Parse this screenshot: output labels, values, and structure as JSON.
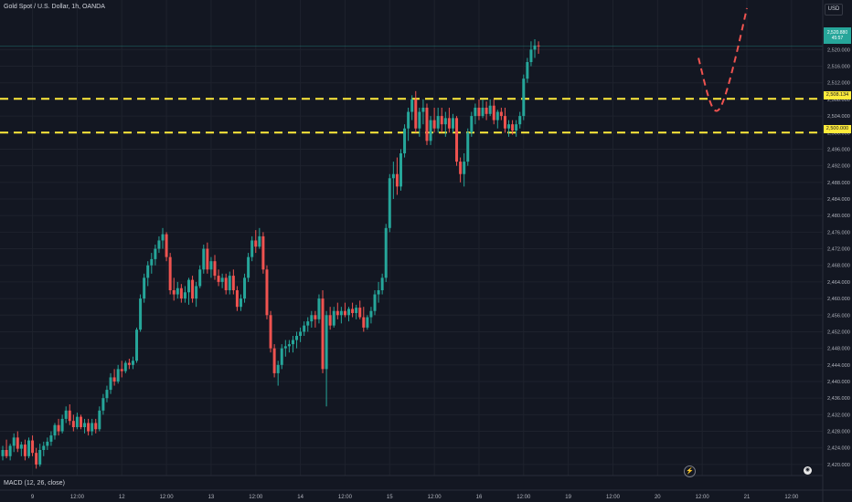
{
  "header": {
    "symbol_line": "Gold Spot / U.S. Dollar, 1h, OANDA"
  },
  "currency_button": "USD",
  "indicator_label": "MACD (12, 26, close)",
  "price_labels": {
    "resistance": "2,508.134",
    "support": "2,500.000",
    "last_price": "2,520.880",
    "last_countdown": "45:57"
  },
  "colors": {
    "background": "#131722",
    "bull": "#26a69a",
    "bear": "#ef5350",
    "level_line": "#ffeb3b",
    "projection": "#ef5350",
    "grid": "#1e222d",
    "axis_text": "#b2b5be"
  },
  "icons": [
    "lightning-icon",
    "tradingview-logo-icon"
  ],
  "chart_data": {
    "type": "candlestick",
    "title": "Gold Spot / U.S. Dollar, 1h, OANDA",
    "ylim": [
      2418,
      2528
    ],
    "y_ticks": [
      "2,520.000",
      "2,516.000",
      "2,512.000",
      "2,508.000",
      "2,504.000",
      "2,500.000",
      "2,496.000",
      "2,492.000",
      "2,488.000",
      "2,484.000",
      "2,480.000",
      "2,476.000",
      "2,472.000",
      "2,468.000",
      "2,464.000",
      "2,460.000",
      "2,456.000",
      "2,452.000",
      "2,448.000",
      "2,444.000",
      "2,440.000",
      "2,436.000",
      "2,432.000",
      "2,428.000",
      "2,424.000",
      "2,420.000"
    ],
    "y_tick_values": [
      2520,
      2516,
      2512,
      2508,
      2504,
      2500,
      2496,
      2492,
      2488,
      2484,
      2480,
      2476,
      2472,
      2468,
      2464,
      2460,
      2456,
      2452,
      2448,
      2444,
      2440,
      2436,
      2432,
      2428,
      2424,
      2420
    ],
    "x_ticks": [
      {
        "label": "9",
        "bar": 8
      },
      {
        "label": "12:00",
        "bar": 20
      },
      {
        "label": "12",
        "bar": 32
      },
      {
        "label": "12:00",
        "bar": 44
      },
      {
        "label": "13",
        "bar": 56
      },
      {
        "label": "12:00",
        "bar": 68
      },
      {
        "label": "14",
        "bar": 80
      },
      {
        "label": "12:00",
        "bar": 92
      },
      {
        "label": "15",
        "bar": 104
      },
      {
        "label": "12:00",
        "bar": 116
      },
      {
        "label": "16",
        "bar": 128
      },
      {
        "label": "12:00",
        "bar": 140
      },
      {
        "label": "19",
        "bar": 152
      },
      {
        "label": "12:00",
        "bar": 164
      },
      {
        "label": "20",
        "bar": 176
      },
      {
        "label": "12:00",
        "bar": 188
      },
      {
        "label": "21",
        "bar": 200
      },
      {
        "label": "12:00",
        "bar": 212
      }
    ],
    "horizontal_levels": [
      2508.134,
      2500.0
    ],
    "last_price": 2520.88,
    "projection": {
      "style": "dashed",
      "points": [
        [
          187,
          2518
        ],
        [
          190,
          2507
        ],
        [
          192,
          2504.5
        ],
        [
          194,
          2508
        ],
        [
          197,
          2518
        ],
        [
          200,
          2530
        ]
      ]
    },
    "ohlc": [
      [
        2422.0,
        2424.5,
        2421.0,
        2423.5
      ],
      [
        2423.5,
        2426.0,
        2421.5,
        2422.0
      ],
      [
        2422.0,
        2425.0,
        2421.0,
        2424.5
      ],
      [
        2424.5,
        2427.5,
        2423.0,
        2426.5
      ],
      [
        2426.5,
        2428.0,
        2423.0,
        2423.8
      ],
      [
        2423.8,
        2425.5,
        2422.0,
        2424.8
      ],
      [
        2424.8,
        2426.0,
        2421.0,
        2422.0
      ],
      [
        2422.0,
        2426.5,
        2421.5,
        2425.8
      ],
      [
        2425.8,
        2427.0,
        2422.0,
        2422.8
      ],
      [
        2422.8,
        2424.0,
        2419.0,
        2420.0
      ],
      [
        2420.0,
        2425.0,
        2419.5,
        2423.5
      ],
      [
        2423.5,
        2425.5,
        2422.0,
        2424.5
      ],
      [
        2424.5,
        2426.5,
        2423.5,
        2425.5
      ],
      [
        2425.5,
        2428.0,
        2424.5,
        2427.0
      ],
      [
        2427.0,
        2430.0,
        2426.0,
        2429.5
      ],
      [
        2429.5,
        2431.0,
        2427.0,
        2428.0
      ],
      [
        2428.0,
        2432.0,
        2427.5,
        2431.0
      ],
      [
        2431.0,
        2434.0,
        2430.0,
        2433.0
      ],
      [
        2433.0,
        2434.5,
        2429.5,
        2430.5
      ],
      [
        2430.5,
        2432.0,
        2428.0,
        2429.0
      ],
      [
        2429.0,
        2432.5,
        2428.5,
        2431.5
      ],
      [
        2431.5,
        2432.0,
        2428.5,
        2429.0
      ],
      [
        2429.0,
        2431.0,
        2427.5,
        2430.0
      ],
      [
        2430.0,
        2431.0,
        2427.0,
        2428.0
      ],
      [
        2428.0,
        2431.0,
        2427.0,
        2430.0
      ],
      [
        2430.0,
        2431.0,
        2427.5,
        2428.5
      ],
      [
        2428.5,
        2434.0,
        2428.0,
        2433.0
      ],
      [
        2433.0,
        2437.0,
        2432.0,
        2436.0
      ],
      [
        2436.0,
        2439.0,
        2435.0,
        2438.0
      ],
      [
        2438.0,
        2442.0,
        2437.0,
        2441.0
      ],
      [
        2441.0,
        2443.0,
        2439.0,
        2440.0
      ],
      [
        2440.0,
        2444.0,
        2439.5,
        2443.0
      ],
      [
        2443.0,
        2445.0,
        2441.0,
        2442.5
      ],
      [
        2442.5,
        2445.0,
        2442.0,
        2444.5
      ],
      [
        2444.5,
        2445.5,
        2443.0,
        2444.0
      ],
      [
        2444.0,
        2446.0,
        2443.0,
        2445.0
      ],
      [
        2445.0,
        2453.0,
        2444.5,
        2452.5
      ],
      [
        2452.5,
        2461.0,
        2452.0,
        2460.0
      ],
      [
        2460.0,
        2466.0,
        2459.0,
        2465.0
      ],
      [
        2465.0,
        2469.0,
        2463.0,
        2468.0
      ],
      [
        2468.0,
        2471.0,
        2466.0,
        2469.5
      ],
      [
        2469.5,
        2473.0,
        2468.0,
        2472.0
      ],
      [
        2472.0,
        2475.0,
        2471.0,
        2474.0
      ],
      [
        2474.0,
        2477.0,
        2472.0,
        2475.5
      ],
      [
        2475.5,
        2476.0,
        2469.0,
        2470.0
      ],
      [
        2470.0,
        2471.0,
        2461.0,
        2462.0
      ],
      [
        2462.0,
        2465.0,
        2459.5,
        2461.0
      ],
      [
        2461.0,
        2464.0,
        2460.0,
        2462.5
      ],
      [
        2462.5,
        2463.5,
        2459.0,
        2460.0
      ],
      [
        2460.0,
        2463.0,
        2459.0,
        2461.5
      ],
      [
        2461.5,
        2465.0,
        2458.5,
        2464.5
      ],
      [
        2464.5,
        2465.5,
        2459.0,
        2460.0
      ],
      [
        2460.0,
        2464.0,
        2458.0,
        2463.0
      ],
      [
        2463.0,
        2468.0,
        2462.5,
        2467.0
      ],
      [
        2467.0,
        2473.0,
        2466.0,
        2472.0
      ],
      [
        2472.0,
        2473.5,
        2466.0,
        2467.0
      ],
      [
        2467.0,
        2470.0,
        2465.0,
        2469.0
      ],
      [
        2469.0,
        2470.5,
        2464.5,
        2465.5
      ],
      [
        2465.5,
        2467.0,
        2463.0,
        2464.0
      ],
      [
        2464.0,
        2466.0,
        2462.5,
        2465.0
      ],
      [
        2465.0,
        2466.0,
        2461.0,
        2462.0
      ],
      [
        2462.0,
        2466.5,
        2461.0,
        2465.5
      ],
      [
        2465.5,
        2467.0,
        2461.0,
        2462.0
      ],
      [
        2462.0,
        2463.0,
        2457.0,
        2458.0
      ],
      [
        2458.0,
        2461.0,
        2457.0,
        2460.0
      ],
      [
        2460.0,
        2466.0,
        2459.0,
        2465.0
      ],
      [
        2465.0,
        2471.0,
        2464.0,
        2470.0
      ],
      [
        2470.0,
        2475.0,
        2469.0,
        2474.0
      ],
      [
        2474.0,
        2476.5,
        2471.0,
        2472.5
      ],
      [
        2472.5,
        2477.0,
        2472.0,
        2475.0
      ],
      [
        2475.0,
        2476.0,
        2466.0,
        2467.0
      ],
      [
        2467.0,
        2468.0,
        2455.0,
        2456.0
      ],
      [
        2456.0,
        2457.0,
        2447.0,
        2448.0
      ],
      [
        2448.0,
        2449.0,
        2441.0,
        2442.0
      ],
      [
        2442.0,
        2445.0,
        2439.0,
        2444.0
      ],
      [
        2444.0,
        2449.0,
        2443.0,
        2448.0
      ],
      [
        2448.0,
        2450.0,
        2446.0,
        2448.5
      ],
      [
        2448.5,
        2450.0,
        2447.0,
        2449.0
      ],
      [
        2449.0,
        2451.0,
        2447.0,
        2450.0
      ],
      [
        2450.0,
        2452.0,
        2448.0,
        2451.0
      ],
      [
        2451.0,
        2453.0,
        2449.5,
        2452.0
      ],
      [
        2452.0,
        2454.5,
        2451.0,
        2453.5
      ],
      [
        2453.5,
        2455.5,
        2452.0,
        2454.5
      ],
      [
        2454.5,
        2457.0,
        2453.0,
        2456.0
      ],
      [
        2456.0,
        2457.0,
        2453.0,
        2455.0
      ],
      [
        2455.0,
        2461.0,
        2454.0,
        2460.0
      ],
      [
        2460.0,
        2462.0,
        2442.0,
        2443.0
      ],
      [
        2443.0,
        2457.0,
        2434.0,
        2456.0
      ],
      [
        2456.0,
        2458.0,
        2452.5,
        2453.5
      ],
      [
        2453.5,
        2458.0,
        2453.0,
        2457.0
      ],
      [
        2457.0,
        2459.0,
        2455.0,
        2456.0
      ],
      [
        2456.0,
        2458.0,
        2454.0,
        2457.0
      ],
      [
        2457.0,
        2459.0,
        2455.5,
        2456.0
      ],
      [
        2456.0,
        2458.0,
        2454.5,
        2457.5
      ],
      [
        2457.5,
        2459.0,
        2455.5,
        2456.5
      ],
      [
        2456.5,
        2458.5,
        2455.0,
        2457.8
      ],
      [
        2457.8,
        2459.5,
        2455.0,
        2455.5
      ],
      [
        2455.5,
        2458.0,
        2452.0,
        2453.0
      ],
      [
        2453.0,
        2456.0,
        2452.5,
        2455.5
      ],
      [
        2455.5,
        2458.0,
        2454.0,
        2457.0
      ],
      [
        2457.0,
        2462.0,
        2456.0,
        2461.0
      ],
      [
        2461.0,
        2464.0,
        2459.0,
        2462.0
      ],
      [
        2462.0,
        2466.0,
        2461.0,
        2465.0
      ],
      [
        2465.0,
        2478.0,
        2464.0,
        2477.0
      ],
      [
        2477.0,
        2490.0,
        2476.0,
        2489.0
      ],
      [
        2489.0,
        2493.0,
        2484.0,
        2490.0
      ],
      [
        2490.0,
        2494.0,
        2485.0,
        2487.0
      ],
      [
        2487.0,
        2496.0,
        2486.0,
        2495.0
      ],
      [
        2495.0,
        2502.0,
        2494.0,
        2501.0
      ],
      [
        2501.0,
        2506.0,
        2498.0,
        2505.0
      ],
      [
        2505.0,
        2509.0,
        2503.0,
        2508.0
      ],
      [
        2508.0,
        2510.0,
        2500.0,
        2501.0
      ],
      [
        2501.0,
        2506.0,
        2499.0,
        2505.0
      ],
      [
        2505.0,
        2508.0,
        2502.0,
        2506.0
      ],
      [
        2506.0,
        2507.0,
        2497.0,
        2498.0
      ],
      [
        2498.0,
        2504.0,
        2497.0,
        2503.0
      ],
      [
        2503.0,
        2506.0,
        2500.0,
        2501.0
      ],
      [
        2501.0,
        2506.0,
        2500.0,
        2504.0
      ],
      [
        2504.0,
        2506.0,
        2500.0,
        2502.0
      ],
      [
        2502.0,
        2505.0,
        2499.0,
        2503.5
      ],
      [
        2503.5,
        2506.0,
        2500.0,
        2501.0
      ],
      [
        2501.0,
        2504.5,
        2500.0,
        2503.5
      ],
      [
        2503.5,
        2504.0,
        2492.0,
        2493.0
      ],
      [
        2493.0,
        2494.0,
        2488.0,
        2490.0
      ],
      [
        2490.0,
        2495.0,
        2487.0,
        2493.0
      ],
      [
        2493.0,
        2501.0,
        2492.0,
        2500.0
      ],
      [
        2500.0,
        2505.0,
        2499.0,
        2504.0
      ],
      [
        2504.0,
        2507.0,
        2502.0,
        2506.0
      ],
      [
        2506.0,
        2508.0,
        2503.0,
        2504.0
      ],
      [
        2504.0,
        2508.0,
        2503.5,
        2506.0
      ],
      [
        2506.0,
        2507.5,
        2503.0,
        2504.5
      ],
      [
        2504.5,
        2508.0,
        2504.0,
        2506.5
      ],
      [
        2506.5,
        2508.0,
        2502.0,
        2503.0
      ],
      [
        2503.0,
        2505.5,
        2501.0,
        2505.0
      ],
      [
        2505.0,
        2506.0,
        2503.0,
        2504.0
      ],
      [
        2504.0,
        2506.0,
        2500.0,
        2501.0
      ],
      [
        2501.0,
        2503.0,
        2499.0,
        2502.0
      ],
      [
        2502.0,
        2503.0,
        2499.5,
        2500.5
      ],
      [
        2500.5,
        2503.0,
        2499.0,
        2502.0
      ],
      [
        2502.0,
        2505.0,
        2501.0,
        2504.0
      ],
      [
        2504.0,
        2514.0,
        2503.0,
        2513.0
      ],
      [
        2513.0,
        2518.0,
        2512.0,
        2517.0
      ],
      [
        2517.0,
        2522.0,
        2516.0,
        2520.0
      ],
      [
        2520.0,
        2522.5,
        2518.0,
        2521.0
      ],
      [
        2521.0,
        2522.0,
        2519.0,
        2520.88
      ]
    ]
  }
}
